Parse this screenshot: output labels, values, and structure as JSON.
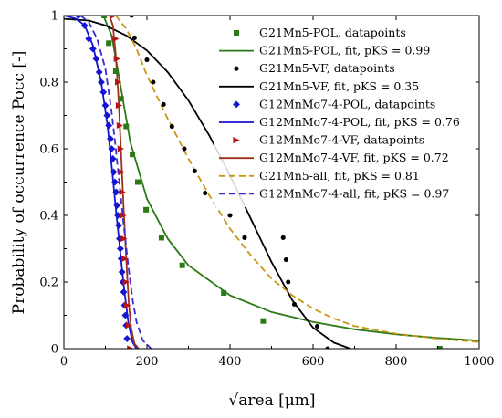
{
  "chart_data": {
    "type": "scatter",
    "xlabel": "√area [μm]",
    "ylabel": "Probability of occurrence Pocc [-]",
    "xlim": [
      0,
      1000
    ],
    "ylim": [
      0,
      1
    ],
    "xticks": [
      "0",
      "200",
      "400",
      "600",
      "800",
      "1000"
    ],
    "yticks": [
      "0",
      "0.2",
      "0.4",
      "0.6",
      "0.8",
      "1"
    ],
    "grid": false,
    "legend_position": "top-right",
    "series": [
      {
        "name": "G21Mn5-POL, datapoints",
        "kind": "points",
        "marker": "square",
        "color": "#2a7a16",
        "points": [
          [
            97,
            1.0
          ],
          [
            108,
            0.917
          ],
          [
            125,
            0.833
          ],
          [
            138,
            0.75
          ],
          [
            150,
            0.667
          ],
          [
            165,
            0.583
          ],
          [
            178,
            0.5
          ],
          [
            198,
            0.417
          ],
          [
            235,
            0.333
          ],
          [
            285,
            0.25
          ],
          [
            385,
            0.167
          ],
          [
            480,
            0.083
          ],
          [
            905,
            0.0
          ]
        ]
      },
      {
        "name": "G21Mn5-POL, fit, pKS = 0.99",
        "kind": "line",
        "style": "solid",
        "color": "#2a7a16",
        "points": [
          [
            95,
            1.0
          ],
          [
            115,
            0.94
          ],
          [
            135,
            0.8
          ],
          [
            160,
            0.62
          ],
          [
            200,
            0.45
          ],
          [
            250,
            0.33
          ],
          [
            300,
            0.25
          ],
          [
            400,
            0.16
          ],
          [
            500,
            0.11
          ],
          [
            600,
            0.08
          ],
          [
            700,
            0.058
          ],
          [
            800,
            0.043
          ],
          [
            900,
            0.032
          ],
          [
            1000,
            0.024
          ]
        ]
      },
      {
        "name": "G21Mn5-VF, datapoints",
        "kind": "points",
        "marker": "circle",
        "color": "#000000",
        "points": [
          [
            163,
            1.0
          ],
          [
            170,
            0.933
          ],
          [
            200,
            0.867
          ],
          [
            215,
            0.8
          ],
          [
            240,
            0.733
          ],
          [
            260,
            0.667
          ],
          [
            290,
            0.6
          ],
          [
            315,
            0.533
          ],
          [
            340,
            0.467
          ],
          [
            400,
            0.4
          ],
          [
            435,
            0.333
          ],
          [
            528,
            0.333
          ],
          [
            535,
            0.267
          ],
          [
            540,
            0.2
          ],
          [
            555,
            0.133
          ],
          [
            610,
            0.067
          ],
          [
            635,
            0.0
          ]
        ]
      },
      {
        "name": "G21Mn5-VF, fit, pKS = 0.35",
        "kind": "line",
        "style": "solid",
        "color": "#000000",
        "points": [
          [
            0,
            0.99
          ],
          [
            60,
            0.985
          ],
          [
            100,
            0.97
          ],
          [
            150,
            0.94
          ],
          [
            200,
            0.895
          ],
          [
            250,
            0.83
          ],
          [
            300,
            0.745
          ],
          [
            350,
            0.64
          ],
          [
            400,
            0.52
          ],
          [
            450,
            0.39
          ],
          [
            500,
            0.26
          ],
          [
            550,
            0.145
          ],
          [
            600,
            0.063
          ],
          [
            650,
            0.018
          ],
          [
            690,
            0.0
          ]
        ]
      },
      {
        "name": "G12MnMo7-4-POL, datapoints",
        "kind": "points",
        "marker": "diamond",
        "color": "#1414d2",
        "points": [
          [
            35,
            1.0
          ],
          [
            50,
            0.97
          ],
          [
            60,
            0.93
          ],
          [
            70,
            0.9
          ],
          [
            78,
            0.87
          ],
          [
            85,
            0.83
          ],
          [
            90,
            0.8
          ],
          [
            95,
            0.77
          ],
          [
            100,
            0.73
          ],
          [
            104,
            0.7
          ],
          [
            108,
            0.67
          ],
          [
            112,
            0.63
          ],
          [
            115,
            0.6
          ],
          [
            118,
            0.57
          ],
          [
            120,
            0.53
          ],
          [
            123,
            0.5
          ],
          [
            126,
            0.47
          ],
          [
            128,
            0.43
          ],
          [
            130,
            0.4
          ],
          [
            132,
            0.37
          ],
          [
            134,
            0.33
          ],
          [
            136,
            0.3
          ],
          [
            138,
            0.27
          ],
          [
            140,
            0.23
          ],
          [
            142,
            0.2
          ],
          [
            144,
            0.17
          ],
          [
            146,
            0.13
          ],
          [
            148,
            0.1
          ],
          [
            150,
            0.07
          ],
          [
            152,
            0.03
          ]
        ]
      },
      {
        "name": "G12MnMo7-4-POL, fit, pKS = 0.76",
        "kind": "line",
        "style": "solid",
        "color": "#1414d2",
        "points": [
          [
            0,
            1.0
          ],
          [
            30,
            0.99
          ],
          [
            50,
            0.97
          ],
          [
            70,
            0.91
          ],
          [
            90,
            0.8
          ],
          [
            105,
            0.67
          ],
          [
            115,
            0.55
          ],
          [
            125,
            0.42
          ],
          [
            135,
            0.3
          ],
          [
            145,
            0.18
          ],
          [
            155,
            0.08
          ],
          [
            165,
            0.02
          ],
          [
            175,
            0.0
          ]
        ]
      },
      {
        "name": "G12MnMo7-4-VF, datapoints",
        "kind": "points",
        "marker": "triangle-right",
        "color": "#b81414",
        "points": [
          [
            120,
            1.0
          ],
          [
            125,
            0.93
          ],
          [
            128,
            0.87
          ],
          [
            131,
            0.8
          ],
          [
            133,
            0.73
          ],
          [
            135,
            0.67
          ],
          [
            137,
            0.6
          ],
          [
            139,
            0.53
          ],
          [
            141,
            0.47
          ],
          [
            143,
            0.4
          ],
          [
            145,
            0.33
          ],
          [
            147,
            0.27
          ],
          [
            150,
            0.2
          ],
          [
            153,
            0.13
          ],
          [
            156,
            0.07
          ],
          [
            160,
            0.0
          ]
        ]
      },
      {
        "name": "G12MnMo7-4-VF, fit, pKS = 0.72",
        "kind": "line",
        "style": "solid",
        "color": "#a0301e",
        "points": [
          [
            110,
            1.0
          ],
          [
            118,
            0.97
          ],
          [
            125,
            0.88
          ],
          [
            132,
            0.74
          ],
          [
            138,
            0.58
          ],
          [
            144,
            0.42
          ],
          [
            150,
            0.27
          ],
          [
            156,
            0.14
          ],
          [
            162,
            0.06
          ],
          [
            170,
            0.015
          ],
          [
            180,
            0.0
          ]
        ]
      },
      {
        "name": "G21Mn5-all, fit, pKS = 0.81",
        "kind": "line",
        "style": "dashed",
        "color": "#c9960f",
        "points": [
          [
            125,
            1.0
          ],
          [
            150,
            0.96
          ],
          [
            175,
            0.9
          ],
          [
            200,
            0.82
          ],
          [
            250,
            0.69
          ],
          [
            300,
            0.57
          ],
          [
            350,
            0.46
          ],
          [
            400,
            0.36
          ],
          [
            450,
            0.28
          ],
          [
            500,
            0.21
          ],
          [
            550,
            0.16
          ],
          [
            600,
            0.12
          ],
          [
            650,
            0.09
          ],
          [
            700,
            0.068
          ],
          [
            800,
            0.045
          ],
          [
            900,
            0.03
          ],
          [
            1000,
            0.02
          ]
        ]
      },
      {
        "name": "G12MnMo7-4-all, fit, pKS = 0.97",
        "kind": "line",
        "style": "dashed",
        "color": "#3c2ad8",
        "points": [
          [
            40,
            1.0
          ],
          [
            60,
            0.98
          ],
          [
            80,
            0.93
          ],
          [
            100,
            0.84
          ],
          [
            115,
            0.71
          ],
          [
            125,
            0.6
          ],
          [
            135,
            0.48
          ],
          [
            145,
            0.36
          ],
          [
            155,
            0.25
          ],
          [
            165,
            0.15
          ],
          [
            175,
            0.08
          ],
          [
            190,
            0.025
          ],
          [
            210,
            0.0
          ]
        ]
      }
    ]
  }
}
